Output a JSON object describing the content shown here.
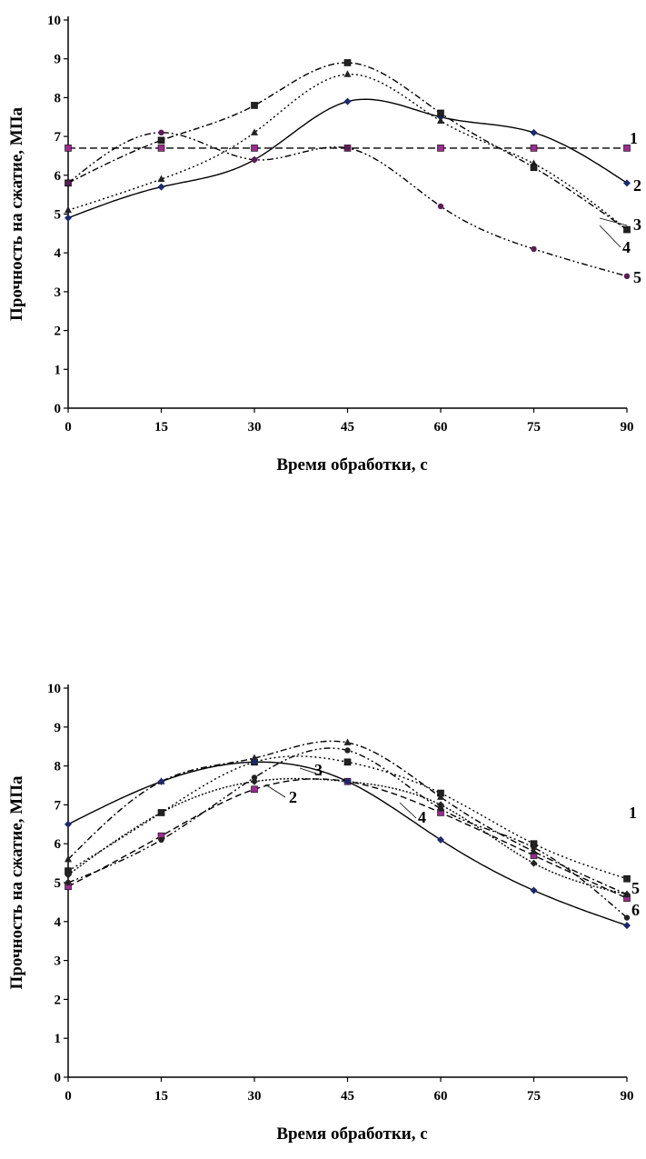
{
  "chart_data": [
    {
      "type": "line",
      "xlabel": "Время обработки, с",
      "ylabel": "Прочность на сжатие, МПа",
      "x": [
        0,
        15,
        30,
        45,
        60,
        75,
        90
      ],
      "xlim": [
        0,
        90
      ],
      "ylim": [
        0,
        10
      ],
      "xticks": [
        "0",
        "15",
        "30",
        "45",
        "60",
        "75",
        "90"
      ],
      "yticks": [
        "0",
        "1",
        "2",
        "3",
        "4",
        "5",
        "6",
        "7",
        "8",
        "9",
        "10"
      ],
      "grid": false,
      "series": [
        {
          "label": "1",
          "values": [
            6.7,
            6.7,
            6.7,
            6.7,
            6.7,
            6.7,
            6.7
          ],
          "color": "#9b2d8e"
        },
        {
          "label": "2",
          "values": [
            4.9,
            5.7,
            6.4,
            7.9,
            7.5,
            7.1,
            5.8
          ],
          "color": "#1a2a6c"
        },
        {
          "label": "3",
          "values": [
            5.1,
            5.9,
            7.1,
            8.6,
            7.4,
            6.3,
            4.6
          ],
          "color": "#222222"
        },
        {
          "label": "4",
          "values": [
            5.8,
            6.9,
            7.8,
            8.9,
            7.6,
            6.2,
            4.6
          ],
          "color": "#222222"
        },
        {
          "label": "5",
          "values": [
            5.8,
            7.1,
            6.4,
            6.7,
            5.2,
            4.1,
            3.4
          ],
          "color": "#5a1e55"
        }
      ]
    },
    {
      "type": "line",
      "xlabel": "Время обработки, с",
      "ylabel": "Прочность на сжатие, МПа",
      "x": [
        0,
        15,
        30,
        45,
        60,
        75,
        90
      ],
      "xlim": [
        0,
        90
      ],
      "ylim": [
        0,
        10
      ],
      "xticks": [
        "0",
        "15",
        "30",
        "45",
        "60",
        "75",
        "90"
      ],
      "yticks": [
        "0",
        "1",
        "2",
        "3",
        "4",
        "5",
        "6",
        "7",
        "8",
        "9",
        "10"
      ],
      "grid": false,
      "series": [
        {
          "label": "1",
          "values": [
            5.3,
            6.8,
            8.1,
            8.1,
            7.3,
            6.0,
            5.1
          ],
          "color": "#222222"
        },
        {
          "label": "2",
          "values": [
            4.9,
            6.2,
            7.4,
            7.6,
            6.8,
            5.7,
            4.6
          ],
          "color": "#9b2d8e"
        },
        {
          "label": "3",
          "values": [
            5.6,
            7.6,
            8.2,
            8.6,
            7.2,
            5.8,
            4.7
          ],
          "color": "#222222"
        },
        {
          "label": "4",
          "values": [
            5.2,
            6.8,
            7.6,
            7.6,
            7.0,
            5.5,
            4.7
          ],
          "color": "#222222"
        },
        {
          "label": "5",
          "values": [
            5.0,
            6.1,
            7.7,
            8.4,
            6.9,
            5.9,
            4.1
          ],
          "color": "#222222"
        },
        {
          "label": "6",
          "values": [
            6.5,
            7.6,
            8.1,
            7.6,
            6.1,
            4.8,
            3.9
          ],
          "color": "#1a2a6c"
        }
      ]
    }
  ]
}
